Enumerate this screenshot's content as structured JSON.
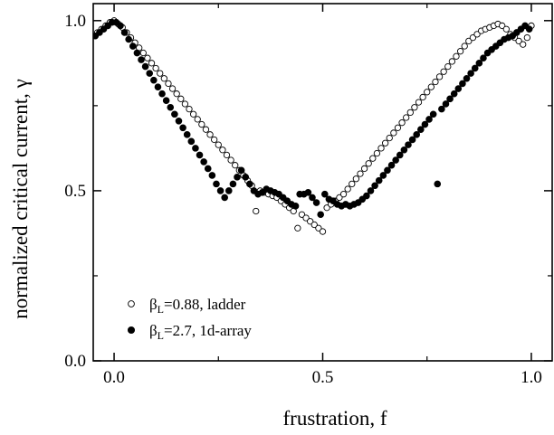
{
  "chart_data": {
    "type": "scatter",
    "title": "",
    "xlabel": "frustration, f",
    "ylabel": "normalized critical current, γ",
    "xlim": [
      -0.05,
      1.05
    ],
    "ylim": [
      0.0,
      1.05
    ],
    "xticks": [
      0.0,
      0.5,
      1.0
    ],
    "xtick_labels": [
      "0.0",
      "0.5",
      "1.0"
    ],
    "yticks": [
      0.0,
      0.5,
      1.0
    ],
    "ytick_labels": [
      "0.0",
      "0.5",
      "1.0"
    ],
    "grid": false,
    "legend_position": "bottom-left",
    "series": [
      {
        "name": "βL=0.88, ladder",
        "legend_prefix": "β",
        "legend_sub": "L",
        "legend_suffix": "=0.88, ladder",
        "marker": "open-circle",
        "color": "#000000",
        "points": [
          [
            -0.04,
            0.965
          ],
          [
            -0.03,
            0.975
          ],
          [
            -0.02,
            0.985
          ],
          [
            -0.01,
            0.995
          ],
          [
            0.0,
            1.0
          ],
          [
            0.01,
            0.99
          ],
          [
            0.02,
            0.98
          ],
          [
            0.03,
            0.965
          ],
          [
            0.04,
            0.95
          ],
          [
            0.05,
            0.935
          ],
          [
            0.06,
            0.92
          ],
          [
            0.07,
            0.905
          ],
          [
            0.08,
            0.89
          ],
          [
            0.09,
            0.875
          ],
          [
            0.1,
            0.86
          ],
          [
            0.11,
            0.845
          ],
          [
            0.12,
            0.83
          ],
          [
            0.13,
            0.815
          ],
          [
            0.14,
            0.8
          ],
          [
            0.15,
            0.785
          ],
          [
            0.16,
            0.77
          ],
          [
            0.17,
            0.755
          ],
          [
            0.18,
            0.74
          ],
          [
            0.19,
            0.725
          ],
          [
            0.2,
            0.71
          ],
          [
            0.21,
            0.695
          ],
          [
            0.22,
            0.68
          ],
          [
            0.23,
            0.665
          ],
          [
            0.24,
            0.65
          ],
          [
            0.25,
            0.635
          ],
          [
            0.26,
            0.62
          ],
          [
            0.27,
            0.605
          ],
          [
            0.28,
            0.59
          ],
          [
            0.29,
            0.575
          ],
          [
            0.3,
            0.56
          ],
          [
            0.31,
            0.545
          ],
          [
            0.32,
            0.53
          ],
          [
            0.33,
            0.515
          ],
          [
            0.34,
            0.44
          ],
          [
            0.35,
            0.5
          ],
          [
            0.36,
            0.495
          ],
          [
            0.37,
            0.49
          ],
          [
            0.38,
            0.485
          ],
          [
            0.39,
            0.48
          ],
          [
            0.4,
            0.47
          ],
          [
            0.41,
            0.46
          ],
          [
            0.42,
            0.45
          ],
          [
            0.43,
            0.44
          ],
          [
            0.44,
            0.39
          ],
          [
            0.45,
            0.43
          ],
          [
            0.46,
            0.42
          ],
          [
            0.47,
            0.41
          ],
          [
            0.48,
            0.4
          ],
          [
            0.49,
            0.39
          ],
          [
            0.5,
            0.38
          ],
          [
            0.51,
            0.45
          ],
          [
            0.52,
            0.46
          ],
          [
            0.53,
            0.47
          ],
          [
            0.54,
            0.48
          ],
          [
            0.55,
            0.49
          ],
          [
            0.56,
            0.505
          ],
          [
            0.57,
            0.52
          ],
          [
            0.58,
            0.535
          ],
          [
            0.59,
            0.55
          ],
          [
            0.6,
            0.565
          ],
          [
            0.61,
            0.58
          ],
          [
            0.62,
            0.595
          ],
          [
            0.63,
            0.61
          ],
          [
            0.64,
            0.625
          ],
          [
            0.65,
            0.64
          ],
          [
            0.66,
            0.655
          ],
          [
            0.67,
            0.67
          ],
          [
            0.68,
            0.685
          ],
          [
            0.69,
            0.7
          ],
          [
            0.7,
            0.715
          ],
          [
            0.71,
            0.73
          ],
          [
            0.72,
            0.745
          ],
          [
            0.73,
            0.76
          ],
          [
            0.74,
            0.775
          ],
          [
            0.75,
            0.79
          ],
          [
            0.76,
            0.805
          ],
          [
            0.77,
            0.82
          ],
          [
            0.78,
            0.835
          ],
          [
            0.79,
            0.85
          ],
          [
            0.8,
            0.865
          ],
          [
            0.81,
            0.88
          ],
          [
            0.82,
            0.895
          ],
          [
            0.83,
            0.91
          ],
          [
            0.84,
            0.925
          ],
          [
            0.85,
            0.94
          ],
          [
            0.86,
            0.95
          ],
          [
            0.87,
            0.96
          ],
          [
            0.88,
            0.97
          ],
          [
            0.89,
            0.975
          ],
          [
            0.9,
            0.98
          ],
          [
            0.91,
            0.985
          ],
          [
            0.92,
            0.99
          ],
          [
            0.93,
            0.985
          ],
          [
            0.94,
            0.975
          ],
          [
            0.95,
            0.96
          ],
          [
            0.96,
            0.95
          ],
          [
            0.97,
            0.94
          ],
          [
            0.98,
            0.93
          ],
          [
            0.99,
            0.95
          ],
          [
            1.0,
            0.985
          ]
        ]
      },
      {
        "name": "βL=2.7, 1d-array",
        "legend_prefix": "β",
        "legend_sub": "L",
        "legend_suffix": "=2.7, 1d-array",
        "marker": "filled-circle",
        "color": "#000000",
        "points": [
          [
            -0.045,
            0.955
          ],
          [
            -0.035,
            0.965
          ],
          [
            -0.025,
            0.975
          ],
          [
            -0.015,
            0.985
          ],
          [
            -0.005,
            0.995
          ],
          [
            0.005,
            0.995
          ],
          [
            0.015,
            0.985
          ],
          [
            0.025,
            0.965
          ],
          [
            0.035,
            0.945
          ],
          [
            0.045,
            0.925
          ],
          [
            0.055,
            0.905
          ],
          [
            0.065,
            0.885
          ],
          [
            0.075,
            0.865
          ],
          [
            0.085,
            0.845
          ],
          [
            0.095,
            0.825
          ],
          [
            0.105,
            0.805
          ],
          [
            0.115,
            0.785
          ],
          [
            0.125,
            0.765
          ],
          [
            0.135,
            0.745
          ],
          [
            0.145,
            0.725
          ],
          [
            0.155,
            0.705
          ],
          [
            0.165,
            0.685
          ],
          [
            0.175,
            0.665
          ],
          [
            0.185,
            0.645
          ],
          [
            0.195,
            0.625
          ],
          [
            0.205,
            0.605
          ],
          [
            0.215,
            0.585
          ],
          [
            0.225,
            0.565
          ],
          [
            0.235,
            0.545
          ],
          [
            0.245,
            0.52
          ],
          [
            0.255,
            0.5
          ],
          [
            0.265,
            0.48
          ],
          [
            0.275,
            0.5
          ],
          [
            0.285,
            0.52
          ],
          [
            0.295,
            0.54
          ],
          [
            0.305,
            0.56
          ],
          [
            0.315,
            0.54
          ],
          [
            0.325,
            0.52
          ],
          [
            0.335,
            0.5
          ],
          [
            0.345,
            0.49
          ],
          [
            0.355,
            0.495
          ],
          [
            0.365,
            0.505
          ],
          [
            0.375,
            0.5
          ],
          [
            0.385,
            0.495
          ],
          [
            0.395,
            0.49
          ],
          [
            0.405,
            0.48
          ],
          [
            0.415,
            0.47
          ],
          [
            0.425,
            0.46
          ],
          [
            0.435,
            0.455
          ],
          [
            0.445,
            0.49
          ],
          [
            0.455,
            0.49
          ],
          [
            0.465,
            0.495
          ],
          [
            0.475,
            0.48
          ],
          [
            0.485,
            0.465
          ],
          [
            0.495,
            0.43
          ],
          [
            0.505,
            0.49
          ],
          [
            0.515,
            0.475
          ],
          [
            0.525,
            0.47
          ],
          [
            0.535,
            0.46
          ],
          [
            0.545,
            0.455
          ],
          [
            0.555,
            0.46
          ],
          [
            0.565,
            0.455
          ],
          [
            0.575,
            0.46
          ],
          [
            0.585,
            0.465
          ],
          [
            0.595,
            0.475
          ],
          [
            0.605,
            0.485
          ],
          [
            0.615,
            0.5
          ],
          [
            0.625,
            0.515
          ],
          [
            0.635,
            0.53
          ],
          [
            0.645,
            0.545
          ],
          [
            0.655,
            0.56
          ],
          [
            0.665,
            0.575
          ],
          [
            0.675,
            0.59
          ],
          [
            0.685,
            0.605
          ],
          [
            0.695,
            0.62
          ],
          [
            0.705,
            0.635
          ],
          [
            0.715,
            0.65
          ],
          [
            0.725,
            0.665
          ],
          [
            0.735,
            0.68
          ],
          [
            0.745,
            0.695
          ],
          [
            0.755,
            0.71
          ],
          [
            0.765,
            0.725
          ],
          [
            0.775,
            0.52
          ],
          [
            0.785,
            0.74
          ],
          [
            0.795,
            0.755
          ],
          [
            0.805,
            0.77
          ],
          [
            0.815,
            0.785
          ],
          [
            0.825,
            0.8
          ],
          [
            0.835,
            0.815
          ],
          [
            0.845,
            0.83
          ],
          [
            0.855,
            0.845
          ],
          [
            0.865,
            0.86
          ],
          [
            0.875,
            0.875
          ],
          [
            0.885,
            0.89
          ],
          [
            0.895,
            0.905
          ],
          [
            0.905,
            0.915
          ],
          [
            0.915,
            0.925
          ],
          [
            0.925,
            0.935
          ],
          [
            0.935,
            0.945
          ],
          [
            0.945,
            0.95
          ],
          [
            0.955,
            0.955
          ],
          [
            0.965,
            0.965
          ],
          [
            0.975,
            0.975
          ],
          [
            0.985,
            0.985
          ],
          [
            0.995,
            0.975
          ]
        ]
      }
    ]
  }
}
